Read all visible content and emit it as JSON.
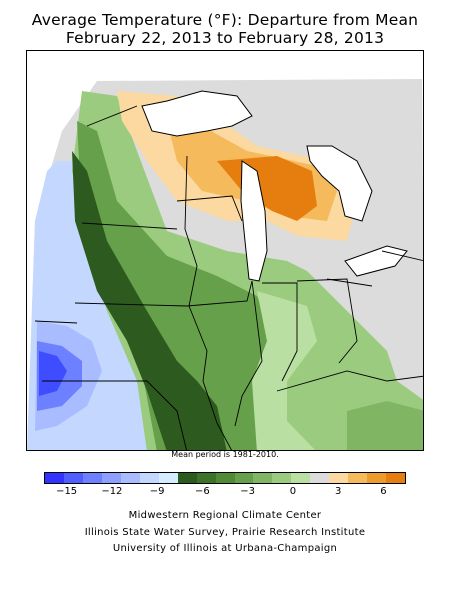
{
  "title": {
    "line1": "Average Temperature (°F): Departure from Mean",
    "line2": "February 22, 2013 to February 28, 2013"
  },
  "note": "Mean period is 1981-2010.",
  "legend": {
    "colors": [
      "#3333ff",
      "#4f5fff",
      "#6d80ff",
      "#8ea0ff",
      "#a9bcff",
      "#c4d8ff",
      "#d6ecff",
      "#2d5a1e",
      "#3d7328",
      "#4f8a35",
      "#67a04a",
      "#80b564",
      "#9bcb7e",
      "#b9e0a2",
      "#dcdcdc",
      "#fbd9a0",
      "#f4ba5c",
      "#ec9c2c",
      "#e67d0f"
    ],
    "tick_labels": [
      {
        "label": "−15",
        "value": -15
      },
      {
        "label": "−12",
        "value": -12
      },
      {
        "label": "−9",
        "value": -9
      },
      {
        "label": "−6",
        "value": -6
      },
      {
        "label": "−3",
        "value": -3
      },
      {
        "label": "0",
        "value": 0
      },
      {
        "label": "3",
        "value": 3
      },
      {
        "label": "6",
        "value": 6
      }
    ],
    "min": -16.5,
    "max": 7.5
  },
  "credits": {
    "line1": "Midwestern Regional Climate Center",
    "line2": "Illinois State Water Survey, Prairie Research Institute",
    "line3": "University of Illinois at Urbana-Champaign"
  }
}
